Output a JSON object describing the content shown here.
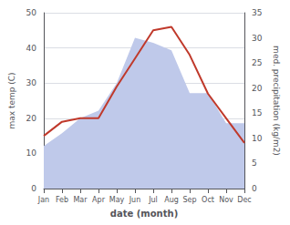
{
  "chart_data": {
    "type": "line",
    "categories": [
      "Jan",
      "Feb",
      "Mar",
      "Apr",
      "May",
      "Jun",
      "Jul",
      "Aug",
      "Sep",
      "Oct",
      "Nov",
      "Dec"
    ],
    "xlabel": "date (month)",
    "ylabel": "max temp (C)",
    "y2label": "med. precipitation (kg/m2)",
    "ylim": [
      0,
      50
    ],
    "yticks": [
      0,
      10,
      20,
      30,
      40,
      50
    ],
    "y2lim": [
      0,
      35
    ],
    "y2ticks": [
      0,
      5,
      10,
      15,
      20,
      25,
      30,
      35
    ],
    "grid": true,
    "series": [
      {
        "type": "area",
        "axis": "y2",
        "color": "#bfc9ea",
        "values": [
          8.5,
          11,
          14,
          15.5,
          21,
          30,
          29,
          27.5,
          19,
          19,
          13,
          13
        ]
      },
      {
        "type": "line",
        "color": "#c0392b",
        "values": [
          15,
          19,
          20,
          20,
          29,
          37,
          45,
          46,
          38,
          27,
          20,
          13
        ]
      }
    ]
  }
}
